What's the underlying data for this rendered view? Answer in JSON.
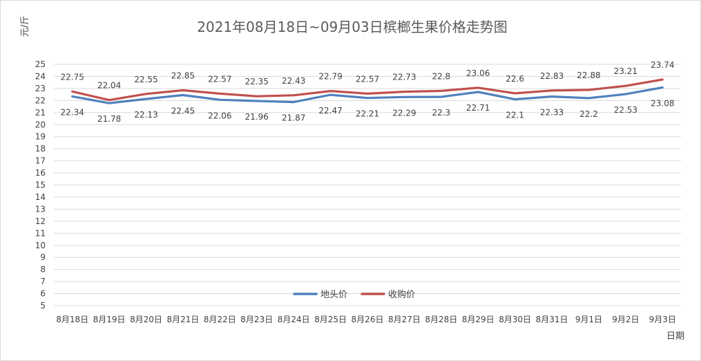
{
  "chart_data": {
    "type": "line",
    "title": "2021年08月18日~09月03日槟榔生果价格走势图",
    "xlabel": "日期",
    "ylabel": "元/斤",
    "ylim": [
      5,
      25
    ],
    "ytick_step": 1,
    "grid": true,
    "legend_position": "bottom-center-inside",
    "categories": [
      "8月18日",
      "8月19日",
      "8月20日",
      "8月21日",
      "8月22日",
      "8月23日",
      "8月24日",
      "8月25日",
      "8月26日",
      "8月27日",
      "8月28日",
      "8月29日",
      "8月30日",
      "8月31日",
      "9月1日",
      "9月2日",
      "9月3日"
    ],
    "series": [
      {
        "name": "地头价",
        "color": "#4f81bd",
        "values": [
          22.34,
          21.78,
          22.13,
          22.45,
          22.06,
          21.96,
          21.87,
          22.47,
          22.21,
          22.29,
          22.3,
          22.71,
          22.1,
          22.33,
          22.2,
          22.53,
          23.08
        ],
        "label_position": "below"
      },
      {
        "name": "收购价",
        "color": "#c0504d",
        "values": [
          22.75,
          22.04,
          22.55,
          22.85,
          22.57,
          22.35,
          22.43,
          22.79,
          22.57,
          22.73,
          22.8,
          23.06,
          22.6,
          22.83,
          22.88,
          23.21,
          23.74
        ],
        "label_position": "above"
      }
    ]
  }
}
